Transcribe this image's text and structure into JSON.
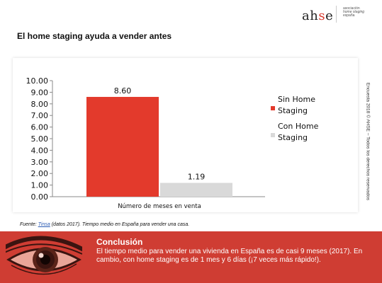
{
  "brand": {
    "name_prefix": "ah",
    "name_accent": "s",
    "name_suffix": "e",
    "sub_line1": "asociación",
    "sub_line2": "home staging",
    "sub_line3": "españa",
    "accent_color": "#d9362b"
  },
  "slide": {
    "title": "El home staging ayuda a vender antes",
    "side_note": "Encuesta 2018 © AHSE – Todos los derechos reservados"
  },
  "source": {
    "prefix": "Fuente:",
    "link_text": "Tinsa",
    "suffix": "(datos 2017). Tiempo medio en España para vender una casa."
  },
  "conclusion": {
    "title": "Conclusión",
    "text": "El tiempo medio para vender una vivienda en España es de casi 9 meses (2017). En cambio, con home staging es de 1 mes y 6 días (¡7 veces más rápido!).",
    "band_color": "#cf3d33"
  },
  "chart_data": {
    "type": "bar",
    "categories": [
      "Número de meses en venta"
    ],
    "series": [
      {
        "name": "Sin Home Staging",
        "legend_lines": [
          "Sin Home",
          "Staging"
        ],
        "values": [
          8.6
        ],
        "label": "8.60",
        "color": "#e33a2c"
      },
      {
        "name": "Con Home Staging",
        "legend_lines": [
          "Con Home",
          "Staging"
        ],
        "values": [
          1.19
        ],
        "label": "1.19",
        "color": "#d9d9d9"
      }
    ],
    "ylim": [
      0,
      10
    ],
    "yticks": [
      "0.00",
      "1.00",
      "2.00",
      "3.00",
      "4.00",
      "5.00",
      "6.00",
      "7.00",
      "8.00",
      "9.00",
      "10.00"
    ],
    "grid": false,
    "legend": "right"
  }
}
